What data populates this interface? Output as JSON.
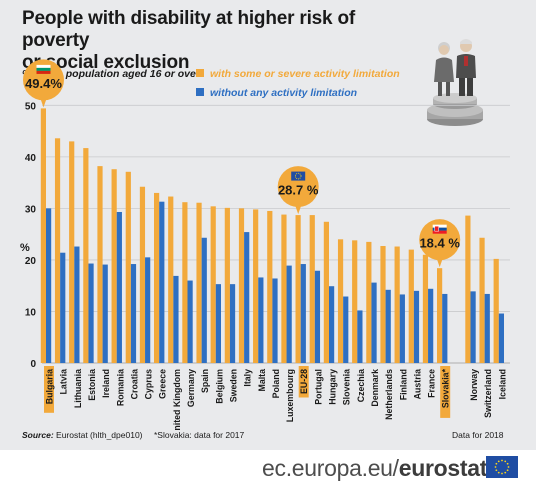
{
  "title_line1": "People with disability at higher risk of poverty",
  "title_line2": "or social exclusion",
  "subtitle": "% of the population aged 16 or over",
  "y_unit": "%",
  "source_label": "Source:",
  "source_text": "Eurostat (hlth_dpe010)",
  "note": "*Slovakia: data for 2017",
  "data_year": "Data for 2018",
  "footer_domain": "ec.europa.eu/",
  "footer_brand": "eurostat",
  "colors": {
    "with_limitation": "#f2a93b",
    "without_limitation": "#2e6fc2",
    "background": "#e9eaec"
  },
  "chart_data": {
    "type": "bar",
    "ylabel": "%",
    "ylim": [
      0,
      52
    ],
    "yticks": [
      0,
      10,
      20,
      30,
      40,
      50
    ],
    "grid": true,
    "legend_position": "top",
    "categories": [
      "Bulgaria",
      "Latvia",
      "Lithuania",
      "Estonia",
      "Ireland",
      "Romania",
      "Croatia",
      "Cyprus",
      "Greece",
      "United Kingdom",
      "Germany",
      "Spain",
      "Belgium",
      "Sweden",
      "Italy",
      "Malta",
      "Poland",
      "Luxembourg",
      "EU-28",
      "Portugal",
      "Hungary",
      "Slovenia",
      "Czechia",
      "Denmark",
      "Netherlands",
      "Finland",
      "Austria",
      "France",
      "Slovakia*",
      "",
      "Norway",
      "Switzerland",
      "Iceland"
    ],
    "highlighted": [
      "Bulgaria",
      "EU-28",
      "Slovakia*"
    ],
    "series": [
      {
        "name": "with some or severe activity limitation",
        "values": [
          49.4,
          43.6,
          43.0,
          41.7,
          38.2,
          37.6,
          37.1,
          34.2,
          33.0,
          32.3,
          31.2,
          31.1,
          30.4,
          30.1,
          30.0,
          29.8,
          29.5,
          28.8,
          28.7,
          28.7,
          27.4,
          24.0,
          23.8,
          23.5,
          22.7,
          22.6,
          22.0,
          21.0,
          18.4,
          null,
          28.6,
          24.3,
          20.2
        ]
      },
      {
        "name": "without any activity limitation",
        "values": [
          30.0,
          21.4,
          22.6,
          19.3,
          19.1,
          29.3,
          19.2,
          20.5,
          31.3,
          16.9,
          16.0,
          24.3,
          15.3,
          15.3,
          25.4,
          16.6,
          16.4,
          18.9,
          19.2,
          17.9,
          14.9,
          12.9,
          10.2,
          15.6,
          14.2,
          13.3,
          14.0,
          14.4,
          13.4,
          null,
          13.9,
          13.4,
          9.6
        ]
      }
    ],
    "callouts": [
      {
        "country": "Bulgaria",
        "label": "49.4%",
        "flag": "bulgaria-flag"
      },
      {
        "country": "EU-28",
        "label": "28.7 %",
        "flag": "eu-flag"
      },
      {
        "country": "Slovakia*",
        "label": "18.4 %",
        "flag": "slovakia-flag"
      }
    ]
  }
}
